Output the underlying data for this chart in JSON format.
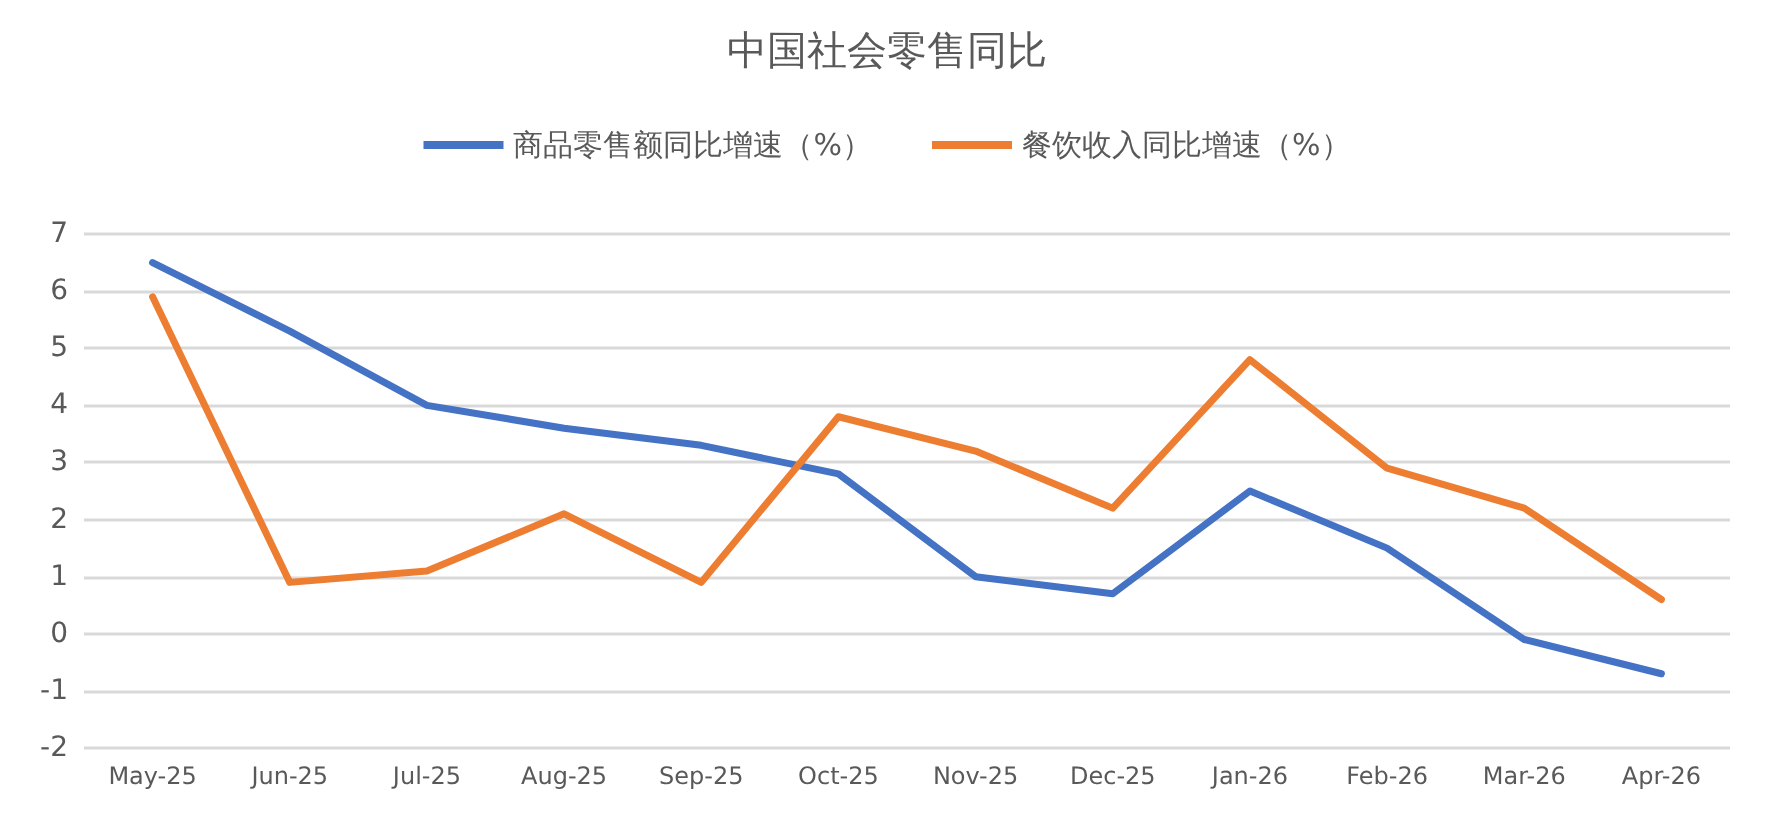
{
  "chart_data": {
    "type": "line",
    "title": "中国社会零售同比",
    "categories": [
      "May-25",
      "Jun-25",
      "Jul-25",
      "Aug-25",
      "Sep-25",
      "Oct-25",
      "Nov-25",
      "Dec-25",
      "Jan-26",
      "Feb-26",
      "Mar-26",
      "Apr-26"
    ],
    "series": [
      {
        "name": "商品零售额同比增速（%）",
        "color": "#4472c4",
        "values": [
          6.5,
          5.3,
          4.0,
          3.6,
          3.3,
          2.8,
          1.0,
          0.7,
          2.5,
          1.5,
          -0.1,
          -0.7
        ]
      },
      {
        "name": "餐饮收入同比增速（%）",
        "color": "#ed7d31",
        "values": [
          5.9,
          0.9,
          1.1,
          2.1,
          0.9,
          3.8,
          3.2,
          2.2,
          4.8,
          2.9,
          2.2,
          0.6
        ]
      }
    ],
    "ylim": [
      -2,
      7
    ],
    "yticks": [
      -2,
      -1,
      0,
      1,
      2,
      3,
      4,
      5,
      6,
      7
    ],
    "grid": "y",
    "legend": "top",
    "marker": "none",
    "line_style": "solid"
  }
}
